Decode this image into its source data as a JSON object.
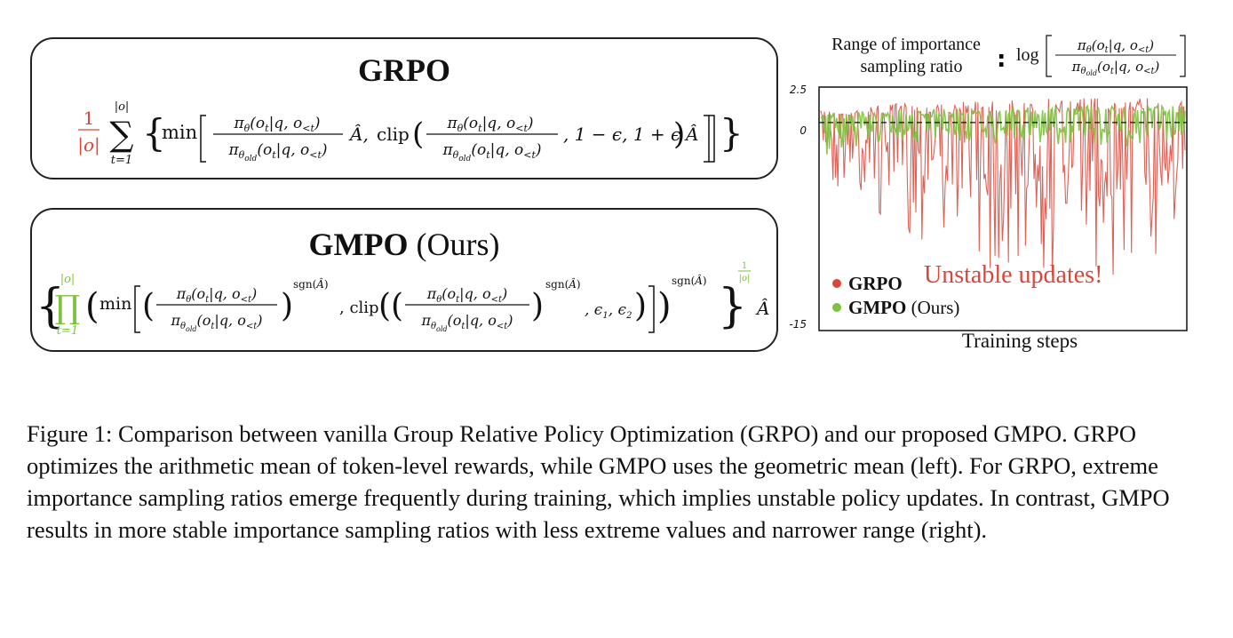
{
  "panels": {
    "grpo": {
      "title": "GRPO"
    },
    "gmpo": {
      "title": "GMPO",
      "title_suffix": "(Ours)"
    }
  },
  "chart": {
    "range_title_line1": "Range of importance",
    "range_title_line2": "sampling ratio",
    "range_log": "log",
    "y_tick_top": "2.5",
    "y_tick_zero": "0",
    "y_tick_bottom": "-15",
    "annotation": "Unstable updates!",
    "legend_grpo": "GRPO",
    "legend_gmpo": "GMPO",
    "legend_gmpo_suffix": "(Ours)",
    "xlabel": "Training steps",
    "colors": {
      "grpo": "#d9473a",
      "gmpo": "#7cc23e"
    }
  },
  "chart_data": {
    "type": "line",
    "xlabel": "Training steps",
    "ylabel": "",
    "ylim": [
      -15,
      2.5
    ],
    "yticks": [
      "2.5",
      "0",
      "-15"
    ],
    "series": [
      {
        "name": "GRPO",
        "color": "#d9473a",
        "upper_envelope": [
          0.9,
          1.2,
          1.4,
          1.5,
          1.6,
          1.7,
          1.8,
          1.9,
          1.9,
          2.0
        ],
        "lower_envelope": [
          -4.0,
          -6.0,
          -8.0,
          -9.0,
          -10.5,
          -11.5,
          -12.0,
          -12.5,
          -11.0,
          -7.5
        ]
      },
      {
        "name": "GMPO",
        "color": "#7cc23e",
        "upper_envelope": [
          0.6,
          0.8,
          0.9,
          1.0,
          1.1,
          1.1,
          1.2,
          1.2,
          1.2,
          1.3
        ],
        "lower_envelope": [
          -2.5,
          -1.6,
          -1.5,
          -1.5,
          -1.6,
          -1.6,
          -1.7,
          -1.7,
          -1.8,
          -1.8
        ]
      }
    ],
    "annotations": [
      "Unstable updates!"
    ]
  },
  "caption": "Figure 1: Comparison between vanilla Group Relative Policy Optimization (GRPO) and our proposed GMPO. GRPO optimizes the arithmetic mean of token-level rewards, while GMPO uses the geometric mean (left). For GRPO, extreme importance sampling ratios emerge frequently during training, which implies unstable policy updates. In contrast, GMPO results in more stable importance sampling ratios with less extreme values and narrower range (right)."
}
